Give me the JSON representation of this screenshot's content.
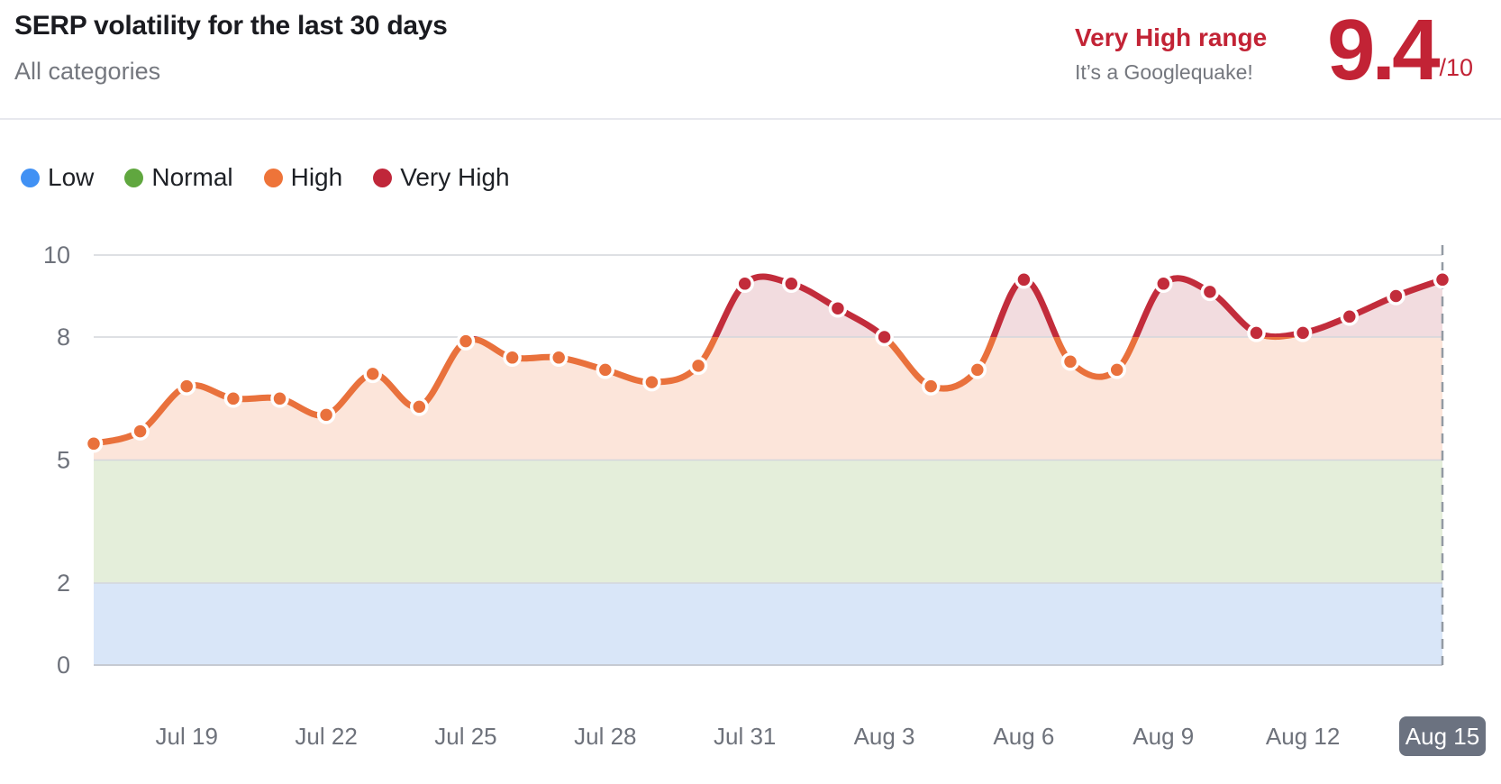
{
  "header": {
    "title": "SERP volatility for the last 30 days",
    "subtitle": "All categories",
    "range_label": "Very High range",
    "range_note": "It’s a Googlequake!",
    "score": "9.4",
    "score_suffix": "/10",
    "accent_color": "#c22335"
  },
  "legend": [
    {
      "label": "Low",
      "color": "#4191f4"
    },
    {
      "label": "Normal",
      "color": "#60a73f"
    },
    {
      "label": "High",
      "color": "#ee7439"
    },
    {
      "label": "Very High",
      "color": "#c0273a"
    }
  ],
  "chart_data": {
    "type": "area",
    "title": "SERP volatility for the last 30 days",
    "x": [
      "Jul 17",
      "Jul 18",
      "Jul 19",
      "Jul 20",
      "Jul 21",
      "Jul 22",
      "Jul 23",
      "Jul 24",
      "Jul 25",
      "Jul 26",
      "Jul 27",
      "Jul 28",
      "Jul 29",
      "Jul 30",
      "Jul 31",
      "Aug 1",
      "Aug 2",
      "Aug 3",
      "Aug 4",
      "Aug 5",
      "Aug 6",
      "Aug 7",
      "Aug 8",
      "Aug 9",
      "Aug 10",
      "Aug 11",
      "Aug 12",
      "Aug 13",
      "Aug 14",
      "Aug 15"
    ],
    "values": [
      5.4,
      5.7,
      6.8,
      6.5,
      6.5,
      6.1,
      7.1,
      6.3,
      7.9,
      7.5,
      7.5,
      7.2,
      6.9,
      7.3,
      9.3,
      9.3,
      8.7,
      8.0,
      6.8,
      7.2,
      9.4,
      7.4,
      7.2,
      9.3,
      9.1,
      8.1,
      8.1,
      8.5,
      9.0,
      9.4
    ],
    "x_tick_indices": [
      2,
      5,
      8,
      11,
      14,
      17,
      20,
      23,
      26,
      29
    ],
    "x_tick_labels": [
      "Jul 19",
      "Jul 22",
      "Jul 25",
      "Jul 28",
      "Jul 31",
      "Aug 3",
      "Aug 6",
      "Aug 9",
      "Aug 12",
      "Aug 15"
    ],
    "y_ticks": [
      0,
      2,
      5,
      8,
      10
    ],
    "ylim": [
      0,
      10
    ],
    "threshold": 8,
    "grid": true,
    "legend_position": "top",
    "bands": [
      {
        "from": 0,
        "to": 2,
        "label": "Low",
        "fill": "#d9e6f8"
      },
      {
        "from": 2,
        "to": 5,
        "label": "Normal",
        "fill": "#e4eeda"
      },
      {
        "from": 5,
        "to": 8,
        "label": "High",
        "fill": "#fce5da"
      },
      {
        "from": 8,
        "to": 10,
        "label": "Very High",
        "fill": "#f2dcdf"
      }
    ],
    "line_colors": {
      "high": "#e9713c",
      "very_high": "#c22c3b"
    },
    "axis_color": "#6e727b",
    "grid_color": "#d3d6dc",
    "dashed_marker_color": "#939aa3",
    "last_label_badge": {
      "text": "Aug 15",
      "bg": "#6b7280",
      "text_color": "#ffffff"
    }
  }
}
